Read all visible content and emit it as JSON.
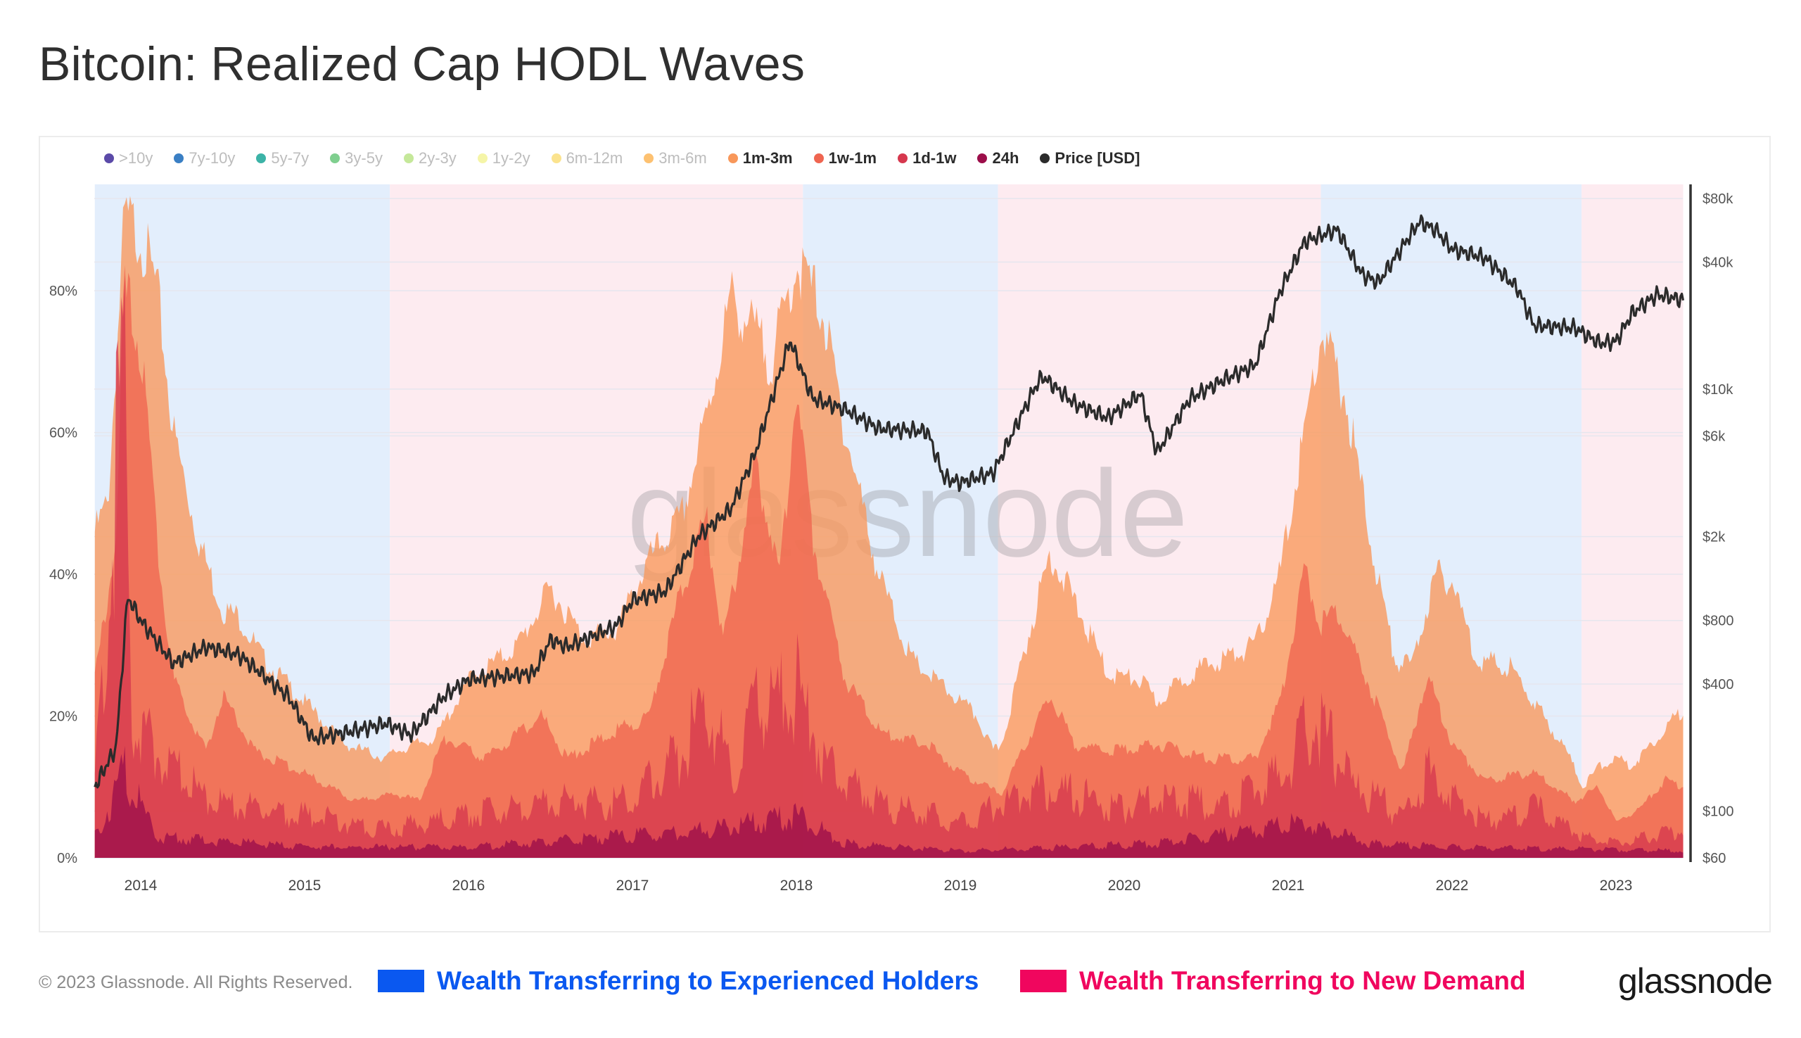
{
  "title": "Bitcoin: Realized Cap HODL Waves",
  "legend": [
    {
      "label": ">10y",
      "color": "#5b4aa8",
      "active": false
    },
    {
      "label": "7y-10y",
      "color": "#3a7fc4",
      "active": false
    },
    {
      "label": "5y-7y",
      "color": "#3cb3a7",
      "active": false
    },
    {
      "label": "3y-5y",
      "color": "#7fcf8f",
      "active": false
    },
    {
      "label": "2y-3y",
      "color": "#c5e89a",
      "active": false
    },
    {
      "label": "1y-2y",
      "color": "#f5f5a8",
      "active": false
    },
    {
      "label": "6m-12m",
      "color": "#fbe38e",
      "active": false
    },
    {
      "label": "3m-6m",
      "color": "#fdc171",
      "active": false
    },
    {
      "label": "1m-3m",
      "color": "#f8975a",
      "active": true
    },
    {
      "label": "1w-1m",
      "color": "#ef6550",
      "active": true
    },
    {
      "label": "1d-1w",
      "color": "#d6384e",
      "active": true
    },
    {
      "label": "24h",
      "color": "#9c0e4a",
      "active": true
    },
    {
      "label": "Price [USD]",
      "color": "#2b2b2b",
      "active": true
    }
  ],
  "watermark": "glassnode",
  "footer": {
    "copyright": "© 2023 Glassnode. All Rights Reserved.",
    "key_experienced": {
      "label": "Wealth Transferring to Experienced Holders",
      "color": "#0a58f0"
    },
    "key_new_demand": {
      "label": "Wealth Transferring to New Demand",
      "color": "#f0065e"
    },
    "logo": "glassnode"
  },
  "chart_data": {
    "type": "area",
    "title": "Bitcoin: Realized Cap HODL Waves",
    "x_ticks": [
      "2014",
      "2015",
      "2016",
      "2017",
      "2018",
      "2019",
      "2020",
      "2021",
      "2022",
      "2023"
    ],
    "xlim": [
      2013.72,
      2023.41
    ],
    "y_left": {
      "ticks": [
        "0%",
        "20%",
        "40%",
        "60%",
        "80%"
      ],
      "tick_values": [
        0,
        20,
        40,
        60,
        80
      ],
      "ylim": [
        0,
        95
      ]
    },
    "y_right": {
      "scale": "log",
      "ticks": [
        "$60",
        "$100",
        "$400",
        "$800",
        "$2k",
        "$6k",
        "$10k",
        "$40k",
        "$80k"
      ],
      "tick_values": [
        60,
        100,
        400,
        800,
        2000,
        6000,
        10000,
        40000,
        80000
      ]
    },
    "grid": true,
    "legend_position": "top-left",
    "background_bands": [
      {
        "from": 2013.72,
        "to": 2015.52,
        "type": "experienced",
        "color": "#e3eefc"
      },
      {
        "from": 2015.52,
        "to": 2018.04,
        "type": "new_demand",
        "color": "#fdebf0"
      },
      {
        "from": 2018.04,
        "to": 2019.23,
        "type": "experienced",
        "color": "#e3eefc"
      },
      {
        "from": 2019.23,
        "to": 2021.2,
        "type": "new_demand",
        "color": "#fdebf0"
      },
      {
        "from": 2021.2,
        "to": 2022.79,
        "type": "experienced",
        "color": "#e3eefc"
      },
      {
        "from": 2022.79,
        "to": 2023.41,
        "type": "new_demand",
        "color": "#fdebf0"
      }
    ],
    "series": [
      {
        "name": "1m-3m",
        "axis": "left",
        "color": "#f8975a",
        "x": [
          2013.72,
          2013.8,
          2013.9,
          2014.0,
          2014.1,
          2014.2,
          2014.35,
          2014.5,
          2014.6,
          2014.75,
          2015.0,
          2015.25,
          2015.5,
          2015.55,
          2015.8,
          2016.0,
          2016.3,
          2016.5,
          2016.7,
          2016.9,
          2017.1,
          2017.3,
          2017.45,
          2017.6,
          2017.75,
          2017.85,
          2018.0,
          2018.15,
          2018.3,
          2018.5,
          2018.7,
          2018.9,
          2019.1,
          2019.2,
          2019.25,
          2019.4,
          2019.55,
          2019.7,
          2019.9,
          2020.1,
          2020.2,
          2020.4,
          2020.6,
          2020.8,
          2020.95,
          2021.1,
          2021.2,
          2021.35,
          2021.5,
          2021.65,
          2021.75,
          2021.9,
          2022.0,
          2022.15,
          2022.35,
          2022.5,
          2022.7,
          2022.8,
          2022.9,
          2023.0,
          2023.1,
          2023.25,
          2023.41
        ],
        "y": [
          46,
          50,
          90,
          88,
          80,
          60,
          45,
          35,
          34,
          28,
          22,
          16,
          14,
          15,
          17,
          25,
          30,
          38,
          31,
          32,
          42,
          48,
          62,
          79,
          74,
          70,
          84,
          78,
          60,
          40,
          28,
          24,
          20,
          15,
          16,
          30,
          43,
          36,
          26,
          25,
          22,
          26,
          28,
          30,
          40,
          60,
          74,
          65,
          45,
          28,
          27,
          40,
          39,
          28,
          27,
          22,
          15,
          10,
          13,
          14,
          13,
          17,
          21
        ]
      },
      {
        "name": "1w-1m",
        "axis": "left",
        "color": "#ef6550",
        "x": [
          2013.72,
          2013.85,
          2013.9,
          2014.0,
          2014.1,
          2014.2,
          2014.4,
          2014.5,
          2014.7,
          2015.0,
          2015.3,
          2015.55,
          2015.7,
          2015.85,
          2016.1,
          2016.45,
          2016.6,
          2016.9,
          2017.1,
          2017.3,
          2017.45,
          2017.55,
          2017.75,
          2017.9,
          2018.0,
          2018.1,
          2018.3,
          2018.5,
          2018.8,
          2019.0,
          2019.25,
          2019.55,
          2019.7,
          2019.9,
          2020.2,
          2020.5,
          2020.8,
          2020.95,
          2021.1,
          2021.2,
          2021.3,
          2021.5,
          2021.7,
          2021.85,
          2022.0,
          2022.2,
          2022.5,
          2022.75,
          2022.9,
          2023.0,
          2023.15,
          2023.3,
          2023.41
        ],
        "y": [
          25,
          45,
          80,
          72,
          45,
          25,
          15,
          23,
          15,
          12,
          8,
          9,
          8,
          17,
          14,
          20,
          14,
          18,
          20,
          38,
          48,
          30,
          55,
          40,
          66,
          45,
          25,
          18,
          16,
          12,
          9,
          23,
          16,
          15,
          16,
          14,
          14,
          22,
          40,
          33,
          35,
          24,
          12,
          26,
          16,
          11,
          12,
          8,
          10,
          5,
          7,
          11,
          10
        ]
      },
      {
        "name": "1d-1w",
        "axis": "left",
        "color": "#d6384e",
        "x": [
          2013.72,
          2013.9,
          2013.95,
          2014.1,
          2014.4,
          2014.7,
          2015.0,
          2015.5,
          2016.0,
          2016.5,
          2017.0,
          2017.3,
          2017.45,
          2017.6,
          2017.75,
          2018.0,
          2018.2,
          2018.6,
          2019.0,
          2019.5,
          2020.0,
          2020.2,
          2020.6,
          2021.0,
          2021.15,
          2021.4,
          2021.7,
          2021.85,
          2022.2,
          2022.5,
          2022.8,
          2023.0,
          2023.41
        ],
        "y": [
          10,
          70,
          20,
          15,
          8,
          7,
          6,
          4,
          6,
          8,
          8,
          15,
          22,
          12,
          20,
          24,
          12,
          7,
          5,
          10,
          7,
          9,
          7,
          12,
          20,
          10,
          6,
          12,
          5,
          7,
          3,
          2,
          4
        ]
      },
      {
        "name": "24h",
        "axis": "left",
        "color": "#9c0e4a",
        "x": [
          2013.72,
          2013.9,
          2014.1,
          2015.0,
          2016.0,
          2017.5,
          2018.0,
          2018.3,
          2019.0,
          2020.2,
          2021.1,
          2021.5,
          2022.0,
          2023.41
        ],
        "y": [
          3,
          12,
          3,
          1.5,
          1.5,
          4,
          6,
          2,
          1,
          2,
          5,
          2,
          1.5,
          1
        ]
      },
      {
        "name": "Price [USD]",
        "axis": "right",
        "color": "#2b2b2b",
        "x": [
          2013.72,
          2013.85,
          2013.92,
          2014.0,
          2014.2,
          2014.4,
          2014.6,
          2014.9,
          2015.05,
          2015.3,
          2015.5,
          2015.65,
          2015.85,
          2016.0,
          2016.4,
          2016.5,
          2016.6,
          2016.9,
          2017.0,
          2017.2,
          2017.4,
          2017.6,
          2017.75,
          2017.96,
          2018.1,
          2018.3,
          2018.5,
          2018.8,
          2018.9,
          2019.0,
          2019.2,
          2019.45,
          2019.5,
          2019.7,
          2019.9,
          2020.1,
          2020.2,
          2020.4,
          2020.6,
          2020.8,
          2020.95,
          2021.1,
          2021.3,
          2021.45,
          2021.55,
          2021.8,
          2021.9,
          2022.0,
          2022.2,
          2022.4,
          2022.5,
          2022.75,
          2022.9,
          2023.0,
          2023.1,
          2023.25,
          2023.41
        ],
        "y": [
          130,
          200,
          1040,
          800,
          500,
          600,
          550,
          350,
          220,
          240,
          260,
          230,
          350,
          420,
          450,
          650,
          600,
          750,
          1000,
          1100,
          2000,
          2700,
          5000,
          17000,
          9000,
          8000,
          6500,
          6300,
          3800,
          3600,
          4000,
          10000,
          11500,
          8500,
          7300,
          9500,
          5000,
          9000,
          11000,
          13000,
          29000,
          50000,
          57000,
          35000,
          32000,
          62000,
          57000,
          46000,
          42000,
          30000,
          20000,
          19500,
          16500,
          16800,
          23000,
          28000,
          26500
        ]
      }
    ]
  }
}
